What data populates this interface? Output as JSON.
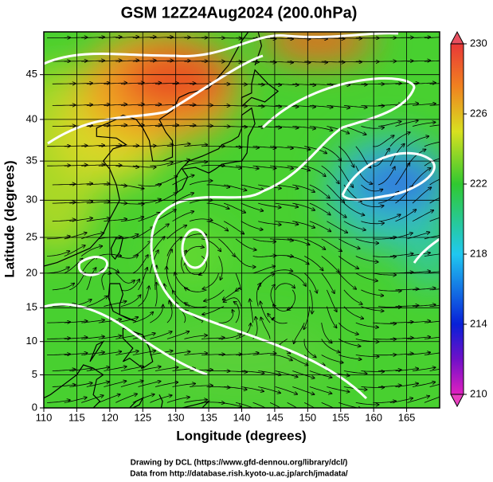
{
  "chart_data": {
    "type": "map",
    "title": "GSM 12Z24Aug2024 (200.0hPa)",
    "x_label": "Longitude (degrees)",
    "y_label": "Latitude  (degrees)",
    "xlim": [
      110,
      170
    ],
    "xticks": [
      110,
      115,
      120,
      125,
      130,
      135,
      140,
      145,
      150,
      155,
      160,
      165
    ],
    "ylim": [
      0,
      49.4
    ],
    "yticks": [
      0,
      5,
      10,
      15,
      20,
      25,
      30,
      35,
      40,
      45
    ],
    "projection": "mercator",
    "grid": true,
    "colorbar": {
      "lim": [
        210,
        230
      ],
      "ticks": [
        210,
        214,
        218,
        222,
        226,
        230
      ]
    },
    "credits": [
      "Drawing by DCL (https://www.gfd-dennou.org/library/dcl/)",
      "Data from http://database.rish.kyoto-u.ac.jp/arch/jmadata/"
    ]
  }
}
